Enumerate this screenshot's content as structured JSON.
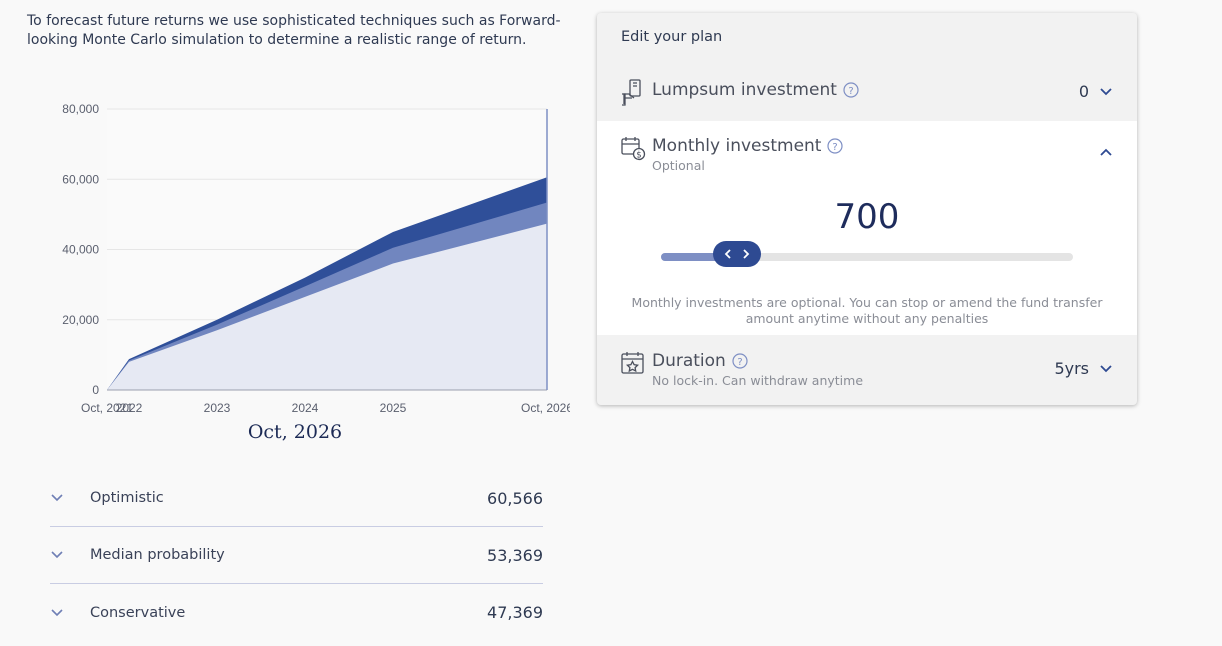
{
  "intro_text": "To forecast future returns we use sophisticated techniques such as Forward-looking Monte Carlo simulation to determine a realistic range of return.",
  "chart_data": {
    "type": "area",
    "x_tick_labels": [
      "Oct, 2021",
      "2022",
      "2023",
      "2024",
      "2025",
      "Oct, 2026"
    ],
    "x": [
      2021.75,
      2022,
      2023,
      2024,
      2025,
      2026.75
    ],
    "y_tick_labels": [
      "0",
      "20,000",
      "40,000",
      "60,000",
      "80,000"
    ],
    "ylim": [
      0,
      80000
    ],
    "series": [
      {
        "name": "Optimistic",
        "values": [
          0,
          8800,
          20000,
          32000,
          45000,
          60566
        ]
      },
      {
        "name": "Median probability",
        "values": [
          0,
          8400,
          18600,
          29500,
          40500,
          53369
        ]
      },
      {
        "name": "Conservative",
        "values": [
          0,
          8000,
          17000,
          26500,
          36000,
          47369
        ]
      }
    ],
    "colors": [
      "#2f4f99",
      "#7186bf",
      "#e6e9f3"
    ],
    "grid": true
  },
  "chart_date": "Oct, 2026",
  "scenarios": [
    {
      "label": "Optimistic",
      "value": "60,566"
    },
    {
      "label": "Median probability",
      "value": "53,369"
    },
    {
      "label": "Conservative",
      "value": "47,369"
    }
  ],
  "plan": {
    "title": "Edit your plan",
    "lumpsum": {
      "label": "Lumpsum investment",
      "value": "0"
    },
    "monthly": {
      "label": "Monthly investment",
      "sublabel": "Optional",
      "amount": "700",
      "slider_fraction": 0.185,
      "note": "Monthly investments are optional. You can stop or amend the fund transfer amount anytime without any penalties"
    },
    "duration": {
      "label": "Duration",
      "sublabel": "No lock-in. Can withdraw anytime",
      "value": "5yrs"
    }
  },
  "colors": {
    "accent": "#2e4a92",
    "text": "#2f3a52",
    "muted": "#8a8d96"
  }
}
